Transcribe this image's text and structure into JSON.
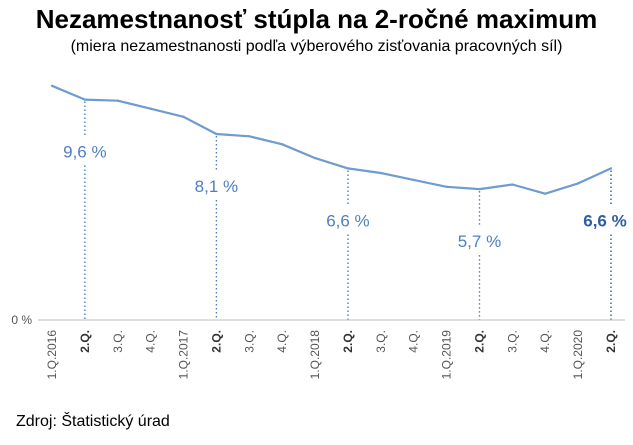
{
  "chart_data": {
    "type": "line",
    "title": "Nezamestnanosť stúpla na 2-ročné maximum",
    "subtitle": "(miera nezamestnanosti podľa výberového zisťovania pracovných síl)",
    "categories": [
      "1.Q.2016",
      "2.Q.",
      "3.Q.",
      "4.Q.",
      "1.Q.2017",
      "2.Q.",
      "3.Q.",
      "4.Q.",
      "1.Q.2018",
      "2.Q.",
      "3.Q.",
      "4.Q.",
      "1.Q.2019",
      "2.Q.",
      "3.Q.",
      "4.Q.",
      "1.Q.2020",
      "2.Q."
    ],
    "bold_categories": [
      1,
      5,
      9,
      13,
      17
    ],
    "values": [
      10.2,
      9.6,
      9.55,
      9.2,
      8.85,
      8.1,
      8.0,
      7.65,
      7.05,
      6.6,
      6.4,
      6.1,
      5.8,
      5.7,
      5.9,
      5.5,
      5.95,
      6.6
    ],
    "labels": [
      {
        "index": 1,
        "text": "9,6 %",
        "bold": false
      },
      {
        "index": 5,
        "text": "8,1 %",
        "bold": false
      },
      {
        "index": 9,
        "text": "6,6 %",
        "bold": false
      },
      {
        "index": 13,
        "text": "5,7 %",
        "bold": false
      },
      {
        "index": 17,
        "text": "6,6 %",
        "bold": true
      }
    ],
    "ylabel": "",
    "xlabel": "",
    "y_tick": "0 %",
    "ylim": [
      0,
      10.8
    ],
    "line_color": "#6f9bd0",
    "label_color": "#4f7fbf",
    "grid": false
  },
  "source": "Zdroj: Štatistický úrad"
}
